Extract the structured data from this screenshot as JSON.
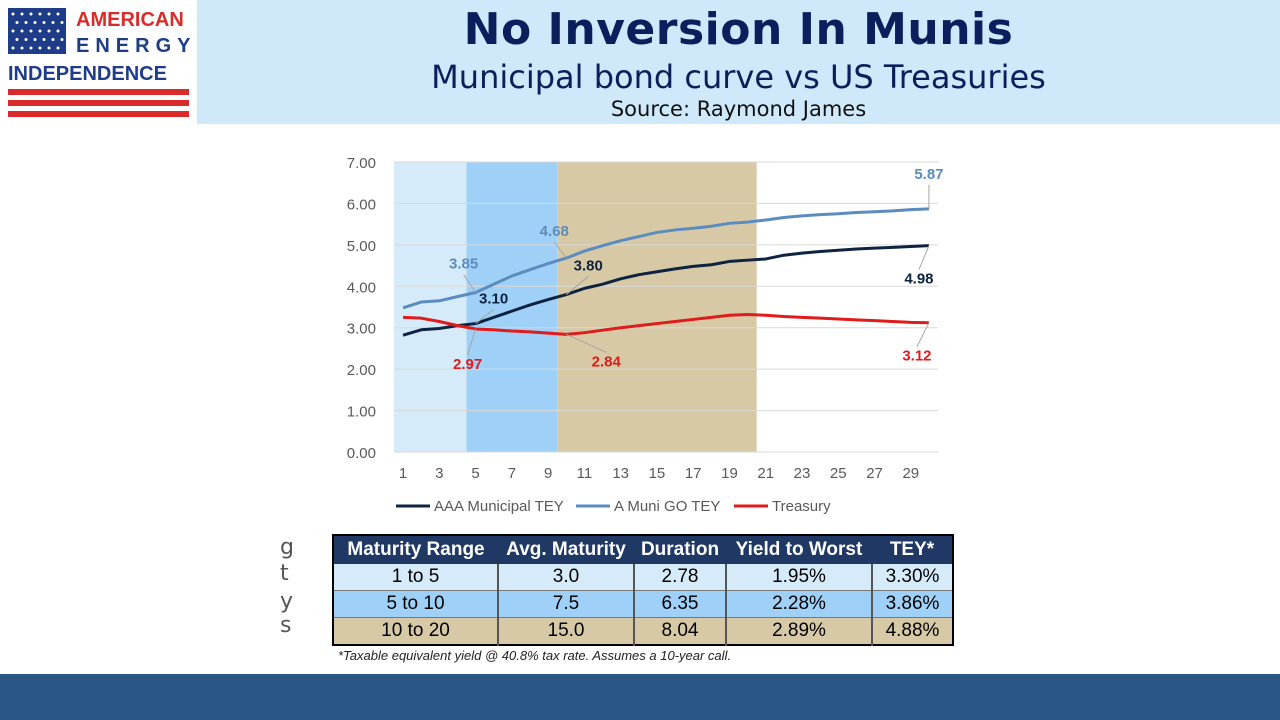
{
  "logo": {
    "line1": "AMERICAN",
    "line2": "ENERGY",
    "line3": "INDEPENDENCE",
    "colors": {
      "blue": "#1f3c88",
      "red": "#d92b2b"
    }
  },
  "header": {
    "title": "No Inversion In Munis",
    "subtitle": "Municipal bond curve vs US Treasuries",
    "source": "Source: Raymond James"
  },
  "chart_data": {
    "type": "line",
    "x": [
      1,
      2,
      3,
      4,
      5,
      6,
      7,
      8,
      9,
      10,
      11,
      12,
      13,
      14,
      15,
      16,
      17,
      18,
      19,
      20,
      21,
      22,
      23,
      24,
      25,
      26,
      27,
      28,
      29,
      30
    ],
    "x_ticks": [
      1,
      3,
      5,
      7,
      9,
      11,
      13,
      15,
      17,
      19,
      21,
      23,
      25,
      27,
      29
    ],
    "y_ticks": [
      "7.00",
      "6.00",
      "5.00",
      "4.00",
      "3.00",
      "2.00",
      "1.00",
      "0.00"
    ],
    "ylim": [
      0,
      7
    ],
    "grid": true,
    "legend_position": "bottom",
    "bands": [
      {
        "from": 0.5,
        "to": 4.5,
        "color": "#d6ebfa"
      },
      {
        "from": 4.5,
        "to": 9.5,
        "color": "#9fd0f7"
      },
      {
        "from": 9.5,
        "to": 20.5,
        "color": "#d8c9a6"
      }
    ],
    "series": [
      {
        "name": "AAA Municipal TEY",
        "color": "#0d2340",
        "values": [
          2.82,
          2.95,
          2.98,
          3.05,
          3.1,
          3.25,
          3.4,
          3.55,
          3.68,
          3.8,
          3.95,
          4.05,
          4.18,
          4.28,
          4.35,
          4.42,
          4.48,
          4.52,
          4.6,
          4.63,
          4.66,
          4.75,
          4.8,
          4.84,
          4.87,
          4.9,
          4.92,
          4.94,
          4.96,
          4.98
        ]
      },
      {
        "name": "A Muni GO TEY",
        "color": "#5b8cbf",
        "values": [
          3.48,
          3.62,
          3.65,
          3.75,
          3.85,
          4.05,
          4.25,
          4.4,
          4.55,
          4.68,
          4.85,
          4.98,
          5.1,
          5.2,
          5.3,
          5.36,
          5.4,
          5.45,
          5.52,
          5.55,
          5.6,
          5.66,
          5.7,
          5.73,
          5.75,
          5.78,
          5.8,
          5.82,
          5.85,
          5.87
        ]
      },
      {
        "name": "Treasury",
        "color": "#e01b1b",
        "values": [
          3.25,
          3.23,
          3.15,
          3.05,
          2.97,
          2.95,
          2.92,
          2.9,
          2.87,
          2.84,
          2.88,
          2.94,
          3.0,
          3.05,
          3.1,
          3.15,
          3.2,
          3.25,
          3.3,
          3.32,
          3.3,
          3.27,
          3.25,
          3.23,
          3.21,
          3.19,
          3.17,
          3.15,
          3.13,
          3.12
        ]
      }
    ],
    "annotations": [
      {
        "text": "5.87",
        "x": 30,
        "y": 5.87,
        "series": 1
      },
      {
        "text": "4.68",
        "x": 10,
        "y": 4.68,
        "series": 1
      },
      {
        "text": "3.85",
        "x": 5,
        "y": 3.85,
        "series": 1
      },
      {
        "text": "3.80",
        "x": 10,
        "y": 3.8,
        "series": 0
      },
      {
        "text": "3.10",
        "x": 5,
        "y": 3.1,
        "series": 0
      },
      {
        "text": "4.98",
        "x": 30,
        "y": 4.98,
        "series": 0
      },
      {
        "text": "2.97",
        "x": 5,
        "y": 2.97,
        "series": 2
      },
      {
        "text": "2.84",
        "x": 10,
        "y": 2.84,
        "series": 2
      },
      {
        "text": "3.12",
        "x": 30,
        "y": 3.12,
        "series": 2
      }
    ]
  },
  "table": {
    "headers": [
      "Maturity Range",
      "Avg. Maturity",
      "Duration",
      "Yield to Worst",
      "TEY*"
    ],
    "rows": [
      [
        "1 to 5",
        "3.0",
        "2.78",
        "1.95%",
        "3.30%"
      ],
      [
        "5 to 10",
        "7.5",
        "6.35",
        "2.28%",
        "3.86%"
      ],
      [
        "10 to 20",
        "15.0",
        "8.04",
        "2.89%",
        "4.88%"
      ]
    ]
  },
  "footnote": "*Taxable equivalent yield @ 40.8% tax rate. Assumes a 10-year call.",
  "stray_chars": [
    "g",
    "t",
    "y",
    "s"
  ],
  "footer_color": "#2a5587"
}
